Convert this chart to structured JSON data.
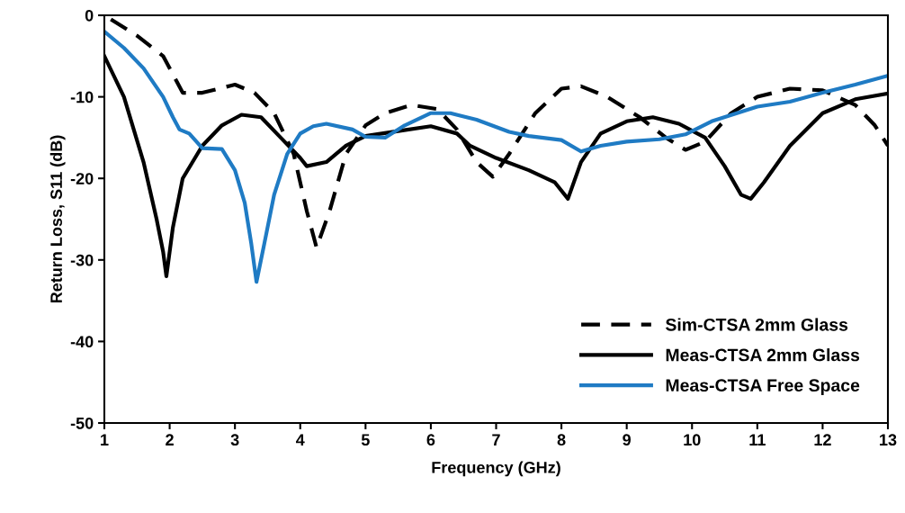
{
  "chart_data": {
    "type": "line",
    "xlabel": "Frequency (GHz)",
    "ylabel": "Return Loss, S11 (dB)",
    "xlim": [
      1,
      13
    ],
    "ylim": [
      -50,
      0
    ],
    "xticks": [
      1,
      2,
      3,
      4,
      5,
      6,
      7,
      8,
      9,
      10,
      11,
      12,
      13
    ],
    "yticks": [
      -50,
      -40,
      -30,
      -20,
      -10,
      0
    ],
    "grid": false,
    "legend": "bottom right",
    "marker": "none",
    "series": [
      {
        "name": "Sim-CTSA 2mm Glass",
        "color": "#000000",
        "line_style": "dashed",
        "x": [
          1.1,
          1.5,
          1.9,
          2.2,
          2.5,
          3,
          3.3,
          3.6,
          3.9,
          4.1,
          4.25,
          4.45,
          4.7,
          5,
          5.3,
          5.7,
          6.1,
          6.4,
          6.7,
          6.95,
          7.2,
          7.6,
          8,
          8.3,
          8.7,
          9.2,
          9.6,
          9.9,
          10.2,
          10.6,
          11,
          11.5,
          12,
          12.5,
          12.8,
          13
        ],
        "values": [
          -0.5,
          -2.5,
          -5,
          -9.5,
          -9.5,
          -8.5,
          -9.5,
          -12,
          -17,
          -24,
          -28.5,
          -24,
          -17,
          -13.5,
          -12,
          -11,
          -11.5,
          -14,
          -18,
          -19.8,
          -17,
          -12,
          -9,
          -8.7,
          -10,
          -12.5,
          -15,
          -16.5,
          -15.5,
          -12,
          -10,
          -9,
          -9.2,
          -11,
          -13.5,
          -16
        ]
      },
      {
        "name": "Meas-CTSA 2mm Glass",
        "color": "#000000",
        "line_style": "solid",
        "x": [
          1,
          1.3,
          1.6,
          1.8,
          1.9,
          1.95,
          2.05,
          2.2,
          2.5,
          2.8,
          3.1,
          3.4,
          3.7,
          4,
          4.1,
          4.4,
          4.7,
          5,
          5.5,
          6,
          6.4,
          6.6,
          7,
          7.5,
          7.9,
          8.1,
          8.3,
          8.6,
          9,
          9.4,
          9.8,
          10.2,
          10.5,
          10.75,
          10.9,
          11.1,
          11.5,
          12,
          12.5,
          13
        ],
        "values": [
          -5,
          -10,
          -18,
          -25,
          -29,
          -32,
          -26,
          -20,
          -16,
          -13.5,
          -12.2,
          -12.5,
          -15,
          -17.5,
          -18.5,
          -18,
          -16,
          -14.8,
          -14.2,
          -13.6,
          -14.5,
          -16,
          -17.5,
          -19,
          -20.5,
          -22.5,
          -18,
          -14.5,
          -13,
          -12.5,
          -13.3,
          -15,
          -18.5,
          -22,
          -22.5,
          -20.5,
          -16,
          -12,
          -10.3,
          -9.6
        ]
      },
      {
        "name": "Meas-CTSA Free Space",
        "color": "#1f7bc4",
        "line_style": "solid",
        "x": [
          1,
          1.3,
          1.6,
          1.9,
          2.05,
          2.15,
          2.3,
          2.5,
          2.8,
          3,
          3.15,
          3.25,
          3.33,
          3.45,
          3.6,
          3.8,
          4,
          4.2,
          4.4,
          4.8,
          5,
          5.3,
          5.6,
          6,
          6.3,
          6.7,
          7.2,
          7.5,
          8,
          8.3,
          8.6,
          9,
          9.5,
          9.9,
          10.3,
          11,
          11.5,
          12,
          12.5,
          13
        ],
        "values": [
          -2,
          -4,
          -6.5,
          -10,
          -12.5,
          -14,
          -14.5,
          -16.3,
          -16.4,
          -19,
          -23,
          -28,
          -32.7,
          -28,
          -22,
          -17,
          -14.5,
          -13.6,
          -13.3,
          -14,
          -14.9,
          -15,
          -13.5,
          -12,
          -12,
          -12.8,
          -14.3,
          -14.8,
          -15.3,
          -16.7,
          -16,
          -15.5,
          -15.2,
          -14.6,
          -13,
          -11.2,
          -10.6,
          -9.5,
          -8.5,
          -7.4
        ]
      }
    ]
  }
}
